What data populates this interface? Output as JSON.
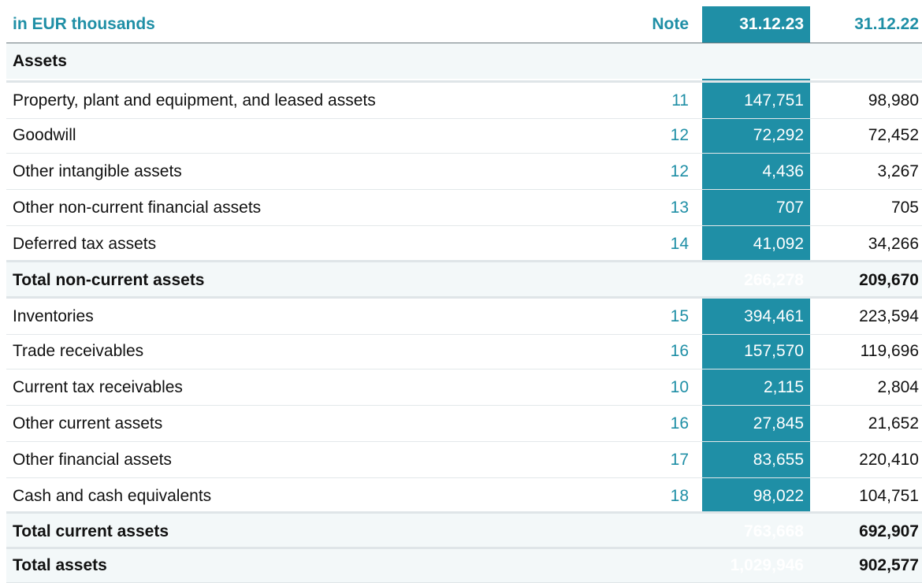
{
  "header": {
    "title": "in EUR thousands",
    "note": "Note",
    "col_current": "31.12.23",
    "col_previous": "31.12.22"
  },
  "section_title": "Assets",
  "rows": [
    {
      "label": "Property, plant and equipment, and leased assets",
      "note": "11",
      "current": "147,751",
      "previous": "98,980"
    },
    {
      "label": "Goodwill",
      "note": "12",
      "current": "72,292",
      "previous": "72,452"
    },
    {
      "label": "Other intangible assets",
      "note": "12",
      "current": "4,436",
      "previous": "3,267"
    },
    {
      "label": "Other non-current financial assets",
      "note": "13",
      "current": "707",
      "previous": "705"
    },
    {
      "label": "Deferred tax assets",
      "note": "14",
      "current": "41,092",
      "previous": "34,266"
    },
    {
      "label": "Total non-current assets",
      "note": "",
      "current": "266,278",
      "previous": "209,670"
    },
    {
      "label": "Inventories",
      "note": "15",
      "current": "394,461",
      "previous": "223,594"
    },
    {
      "label": "Trade receivables",
      "note": "16",
      "current": "157,570",
      "previous": "119,696"
    },
    {
      "label": "Current tax receivables",
      "note": "10",
      "current": "2,115",
      "previous": "2,804"
    },
    {
      "label": "Other current assets",
      "note": "16",
      "current": "27,845",
      "previous": "21,652"
    },
    {
      "label": "Other financial assets",
      "note": "17",
      "current": "83,655",
      "previous": "220,410"
    },
    {
      "label": "Cash and cash equivalents",
      "note": "18",
      "current": "98,022",
      "previous": "104,751"
    },
    {
      "label": "Total current assets",
      "note": "",
      "current": "763,668",
      "previous": "692,907"
    },
    {
      "label": "Total assets",
      "note": "",
      "current": "1,029,946",
      "previous": "902,577"
    }
  ],
  "colors": {
    "accent": "#1f8fa6",
    "shade": "#f3f8f9"
  }
}
